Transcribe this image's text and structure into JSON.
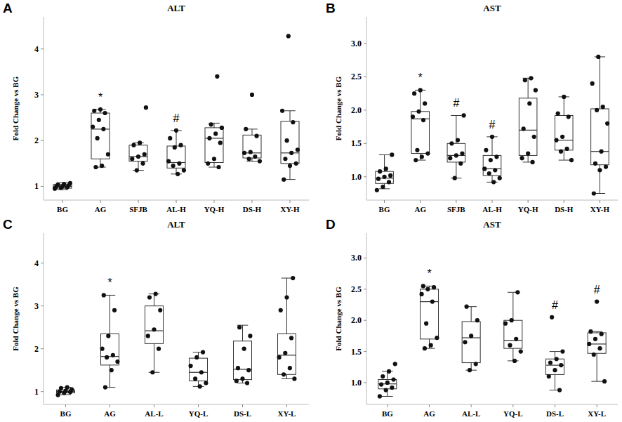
{
  "chart_data": [
    {
      "type": "box",
      "panel": "A",
      "title": "ALT",
      "y_label": "Fold Change vs BG",
      "categories": [
        "BG",
        "AG",
        "SFJB",
        "AL-H",
        "YQ-H",
        "DS-H",
        "XY-H"
      ],
      "ylim": [
        0.7,
        4.7
      ],
      "yticks": [
        1,
        2,
        3,
        4
      ],
      "boxes": [
        {
          "min": 0.93,
          "q1": 0.96,
          "median": 1.0,
          "q3": 1.04,
          "max": 1.08
        },
        {
          "min": 1.42,
          "q1": 1.6,
          "median": 2.25,
          "q3": 2.6,
          "max": 2.68
        },
        {
          "min": 1.35,
          "q1": 1.55,
          "median": 1.65,
          "q3": 1.9,
          "max": 1.95
        },
        {
          "min": 1.27,
          "q1": 1.4,
          "median": 1.52,
          "q3": 1.88,
          "max": 2.22
        },
        {
          "min": 1.42,
          "q1": 1.52,
          "median": 2.05,
          "q3": 2.28,
          "max": 2.38
        },
        {
          "min": 1.55,
          "q1": 1.62,
          "median": 1.73,
          "q3": 2.12,
          "max": 2.25
        },
        {
          "min": 1.15,
          "q1": 1.5,
          "median": 1.73,
          "q3": 2.42,
          "max": 2.65
        }
      ],
      "points": [
        [
          0.95,
          0.97,
          0.98,
          1.0,
          1.0,
          1.02,
          1.04,
          1.05,
          1.07
        ],
        [
          1.42,
          1.45,
          1.7,
          2.05,
          2.25,
          2.3,
          2.45,
          2.6,
          2.65,
          2.68
        ],
        [
          1.35,
          1.5,
          1.6,
          1.65,
          1.7,
          1.9,
          1.95,
          2.72
        ],
        [
          1.27,
          1.35,
          1.45,
          1.5,
          1.55,
          1.85,
          1.9,
          2.05,
          2.22
        ],
        [
          1.42,
          1.5,
          1.6,
          1.95,
          2.05,
          2.15,
          2.28,
          2.35,
          3.4
        ],
        [
          1.55,
          1.6,
          1.65,
          1.73,
          1.75,
          2.1,
          2.25,
          3.0
        ],
        [
          1.15,
          1.45,
          1.5,
          1.6,
          1.73,
          1.8,
          2.0,
          2.4,
          2.65,
          4.28
        ]
      ],
      "annotations": [
        {
          "category": "AG",
          "text": "*"
        },
        {
          "category": "AL-H",
          "text": "#"
        }
      ]
    },
    {
      "type": "box",
      "panel": "B",
      "title": "AST",
      "y_label": "Fold Change vs BG",
      "categories": [
        "BG",
        "AG",
        "SFJB",
        "AL-H",
        "YQ-H",
        "DS-H",
        "XY-H"
      ],
      "ylim": [
        0.65,
        3.4
      ],
      "yticks": [
        {
          "value": 1,
          "label": "1.0"
        },
        {
          "value": 1.5,
          "label": "1.5"
        },
        {
          "value": 2,
          "label": "2.0"
        },
        {
          "value": 2.5,
          "label": "2.5"
        },
        {
          "value": 3,
          "label": "3.0"
        }
      ],
      "boxes": [
        {
          "min": 0.82,
          "q1": 0.9,
          "median": 0.98,
          "q3": 1.08,
          "max": 1.33
        },
        {
          "min": 1.25,
          "q1": 1.35,
          "median": 1.87,
          "q3": 1.98,
          "max": 2.3
        },
        {
          "min": 0.98,
          "q1": 1.22,
          "median": 1.32,
          "q3": 1.5,
          "max": 1.92
        },
        {
          "min": 0.92,
          "q1": 1.02,
          "median": 1.12,
          "q3": 1.32,
          "max": 1.6
        },
        {
          "min": 1.22,
          "q1": 1.32,
          "median": 1.7,
          "q3": 2.18,
          "max": 2.48
        },
        {
          "min": 1.25,
          "q1": 1.4,
          "median": 1.55,
          "q3": 1.92,
          "max": 2.2
        },
        {
          "min": 0.75,
          "q1": 1.18,
          "median": 1.38,
          "q3": 2.02,
          "max": 2.8
        }
      ],
      "points": [
        [
          0.8,
          0.85,
          0.92,
          0.97,
          1.0,
          1.02,
          1.08,
          1.12,
          1.33
        ],
        [
          1.25,
          1.3,
          1.35,
          1.4,
          1.85,
          1.9,
          1.98,
          2.1,
          2.25,
          2.3
        ],
        [
          0.98,
          1.2,
          1.28,
          1.32,
          1.35,
          1.5,
          1.55,
          1.92
        ],
        [
          0.92,
          0.98,
          1.05,
          1.1,
          1.12,
          1.25,
          1.3,
          1.4,
          1.6
        ],
        [
          1.22,
          1.28,
          1.35,
          1.6,
          1.72,
          2.1,
          2.3,
          2.45,
          2.48
        ],
        [
          1.25,
          1.38,
          1.42,
          1.55,
          1.6,
          1.9,
          1.95,
          2.2
        ],
        [
          0.75,
          1.1,
          1.15,
          1.2,
          1.38,
          1.8,
          2.0,
          2.05,
          2.4,
          2.8
        ]
      ],
      "annotations": [
        {
          "category": "AG",
          "text": "*"
        },
        {
          "category": "SFJB",
          "text": "#"
        },
        {
          "category": "AL-H",
          "text": "#"
        }
      ]
    },
    {
      "type": "box",
      "panel": "C",
      "title": "ALT",
      "y_label": "Fold Change vs BG",
      "categories": [
        "BG",
        "AG",
        "AL-L",
        "YQ-L",
        "DS-L",
        "XY-L"
      ],
      "ylim": [
        0.7,
        4.7
      ],
      "yticks": [
        1,
        2,
        3,
        4
      ],
      "boxes": [
        {
          "min": 0.93,
          "q1": 0.97,
          "median": 1.0,
          "q3": 1.04,
          "max": 1.1
        },
        {
          "min": 1.1,
          "q1": 1.62,
          "median": 1.82,
          "q3": 2.35,
          "max": 3.25
        },
        {
          "min": 1.45,
          "q1": 2.12,
          "median": 2.42,
          "q3": 3.0,
          "max": 3.28
        },
        {
          "min": 1.12,
          "q1": 1.25,
          "median": 1.45,
          "q3": 1.78,
          "max": 1.92
        },
        {
          "min": 1.2,
          "q1": 1.28,
          "median": 1.52,
          "q3": 2.18,
          "max": 2.55
        },
        {
          "min": 1.3,
          "q1": 1.4,
          "median": 1.85,
          "q3": 2.35,
          "max": 3.65
        }
      ],
      "points": [
        [
          0.92,
          0.97,
          0.99,
          1.0,
          1.02,
          1.05,
          1.08,
          1.1
        ],
        [
          1.1,
          1.5,
          1.7,
          1.8,
          1.85,
          2.0,
          2.3,
          2.9,
          3.25
        ],
        [
          1.45,
          2.0,
          2.3,
          2.45,
          2.9,
          3.2,
          3.28
        ],
        [
          1.12,
          1.2,
          1.3,
          1.45,
          1.6,
          1.8,
          1.92
        ],
        [
          1.2,
          1.25,
          1.3,
          1.5,
          1.55,
          2.0,
          2.3,
          2.5
        ],
        [
          1.3,
          1.4,
          1.55,
          1.8,
          1.9,
          2.25,
          2.9,
          3.2,
          3.65
        ]
      ],
      "annotations": [
        {
          "category": "AG",
          "text": "*"
        }
      ]
    },
    {
      "type": "box",
      "panel": "D",
      "title": "AST",
      "y_label": "Fold Change vs BG",
      "categories": [
        "BG",
        "AG",
        "AL-L",
        "YQ-L",
        "DS-L",
        "XY-L"
      ],
      "ylim": [
        0.65,
        3.4
      ],
      "yticks": [
        {
          "value": 1,
          "label": "1.0"
        },
        {
          "value": 1.5,
          "label": "1.5"
        },
        {
          "value": 2,
          "label": "2.0"
        },
        {
          "value": 2.5,
          "label": "2.5"
        },
        {
          "value": 3,
          "label": "3.0"
        }
      ],
      "boxes": [
        {
          "min": 0.78,
          "q1": 0.9,
          "median": 0.98,
          "q3": 1.05,
          "max": 1.18
        },
        {
          "min": 1.55,
          "q1": 1.7,
          "median": 2.3,
          "q3": 2.5,
          "max": 2.55
        },
        {
          "min": 1.2,
          "q1": 1.32,
          "median": 1.72,
          "q3": 1.98,
          "max": 2.22
        },
        {
          "min": 1.35,
          "q1": 1.55,
          "median": 1.68,
          "q3": 2.0,
          "max": 2.45
        },
        {
          "min": 0.88,
          "q1": 1.13,
          "median": 1.28,
          "q3": 1.38,
          "max": 1.5
        },
        {
          "min": 1.02,
          "q1": 1.47,
          "median": 1.62,
          "q3": 1.8,
          "max": 1.82
        }
      ],
      "points": [
        [
          0.78,
          0.88,
          0.92,
          0.97,
          1.0,
          1.05,
          1.1,
          1.18,
          1.3
        ],
        [
          1.55,
          1.6,
          1.72,
          1.95,
          2.3,
          2.42,
          2.5,
          2.53,
          2.55
        ],
        [
          1.2,
          1.3,
          1.65,
          1.75,
          2.0,
          2.22
        ],
        [
          1.35,
          1.5,
          1.6,
          1.7,
          1.95,
          2.0,
          2.45
        ],
        [
          0.88,
          1.1,
          1.2,
          1.28,
          1.32,
          1.38,
          1.5,
          2.05
        ],
        [
          1.02,
          1.45,
          1.55,
          1.62,
          1.7,
          1.78,
          1.82,
          2.3
        ]
      ],
      "annotations": [
        {
          "category": "AG",
          "text": "*"
        },
        {
          "category": "DS-L",
          "text": "#"
        },
        {
          "category": "XY-L",
          "text": "#"
        }
      ]
    }
  ]
}
